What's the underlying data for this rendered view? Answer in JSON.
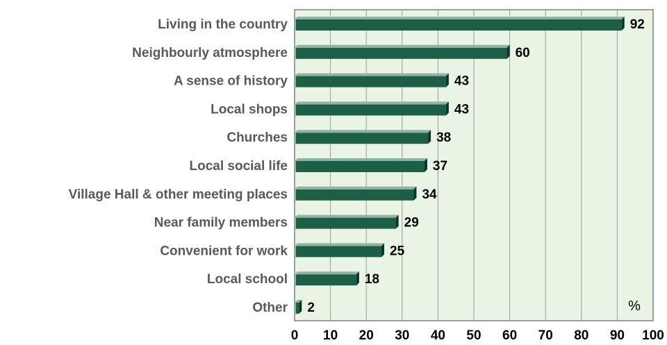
{
  "chart_data": {
    "type": "bar",
    "orientation": "horizontal",
    "categories": [
      "Living in the country",
      "Neighbourly atmosphere",
      "A sense of history",
      "Local shops",
      "Churches",
      "Local social life",
      "Village Hall & other meeting places",
      "Near family members",
      "Convenient for work",
      "Local school",
      "Other"
    ],
    "values": [
      92,
      60,
      43,
      43,
      38,
      37,
      34,
      29,
      25,
      18,
      2
    ],
    "xlim": [
      0,
      100
    ],
    "xticks": [
      0,
      10,
      20,
      30,
      40,
      50,
      60,
      70,
      80,
      90,
      100
    ],
    "unit_label": "%",
    "grid": true,
    "legend": "none",
    "colors": {
      "plot_background": "#eaf4e4",
      "bar_front": "#1d5e47",
      "bar_top": "#8fb3a2",
      "bar_side": "#0d3326",
      "category_text": "#595959",
      "gridline": "#9a9a9a"
    }
  }
}
